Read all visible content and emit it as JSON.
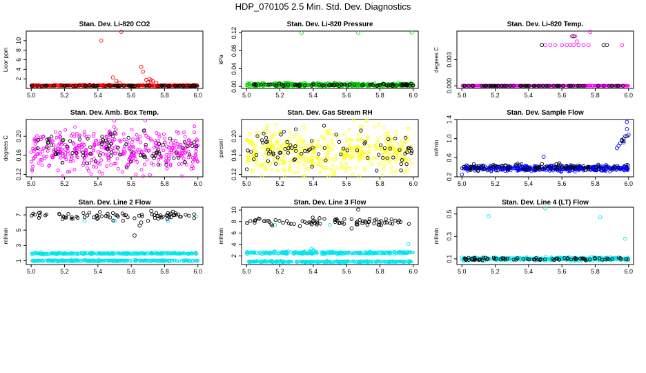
{
  "figure_title": "HDP_070105  2.5 Min. Std. Dev. Diagnostics",
  "x_axis": {
    "range": [
      4.97,
      6.03
    ],
    "ticks": [
      "5.0",
      "5.2",
      "5.4",
      "5.6",
      "5.8",
      "6.0"
    ]
  },
  "chart_data": [
    {
      "id": "co2",
      "type": "scatter",
      "title": "Stan. Dev. Li-820 CO2",
      "ylabel": "Licor ppm",
      "ylim": [
        0,
        12
      ],
      "yticks": [
        "2",
        "4",
        "6",
        "8",
        "10"
      ],
      "series": [
        {
          "name": "points",
          "color": "#ff0000",
          "base": {
            "mean": 0.6,
            "sd": 0.08,
            "n": 420
          },
          "x": [
            5.42,
            5.54,
            5.49,
            5.51,
            5.53,
            5.66,
            5.67,
            5.69,
            5.71,
            5.73,
            5.75,
            5.7,
            5.72
          ],
          "y": [
            10.0,
            12.0,
            2.3,
            1.6,
            1.2,
            4.5,
            3.5,
            1.8,
            2.0,
            1.5,
            1.2,
            1.3,
            1.7
          ]
        },
        {
          "name": "black",
          "color": "#000000",
          "base": {
            "mean": 0.55,
            "sd": 0.05,
            "n": 80
          }
        }
      ]
    },
    {
      "id": "pressure",
      "type": "scatter",
      "title": "Stan. Dev. Li-820 Pressure",
      "ylabel": "kPa",
      "ylim": [
        -0.004,
        0.124
      ],
      "yticks": [
        "0.00",
        "0.04",
        "0.08",
        "0.12"
      ],
      "series": [
        {
          "name": "points",
          "color": "#00cc00",
          "base": {
            "mean": 0.004,
            "sd": 0.002,
            "n": 420
          },
          "x": [
            5.33,
            5.67,
            5.99
          ],
          "y": [
            0.12,
            0.12,
            0.121
          ]
        },
        {
          "name": "black",
          "color": "#000000",
          "base": {
            "mean": 0.004,
            "sd": 0.0015,
            "n": 80
          }
        }
      ]
    },
    {
      "id": "temp",
      "type": "scatter",
      "title": "Stan. Dev. Li-820 Temp.",
      "ylabel": "degrees C",
      "ylim": [
        -0.0003,
        0.0063
      ],
      "yticks": [
        "0.000",
        "0.003"
      ],
      "series": [
        {
          "name": "points",
          "color": "#ff00ff",
          "base": {
            "mean": 0.0,
            "sd": 0.0,
            "n": 420
          },
          "x": [
            5.48,
            5.5,
            5.53,
            5.56,
            5.6,
            5.63,
            5.65,
            5.67,
            5.7,
            5.73,
            5.76,
            5.66,
            5.68,
            5.77,
            5.96,
            5.69
          ],
          "y": [
            0.0047,
            0.0047,
            0.0047,
            0.0047,
            0.0047,
            0.0047,
            0.0047,
            0.0047,
            0.0047,
            0.0047,
            0.0047,
            0.0057,
            0.0057,
            0.0062,
            0.0047,
            0.0051
          ]
        },
        {
          "name": "black",
          "color": "#000000",
          "base": {
            "mean": 0.0,
            "sd": 0.0,
            "n": 80
          },
          "x": [
            5.48,
            5.67,
            5.85,
            5.87
          ],
          "y": [
            0.0047,
            0.0057,
            0.0047,
            0.0047
          ]
        }
      ]
    },
    {
      "id": "ambbox",
      "type": "scatter",
      "title": "Stan. Dev. Amb. Box Temp.",
      "ylabel": "degrees C",
      "ylim": [
        0.115,
        0.235
      ],
      "yticks": [
        "0.12",
        "0.16",
        "0.20"
      ],
      "series": [
        {
          "name": "points",
          "color": "#ff00ff",
          "base": {
            "mean": 0.17,
            "sd": 0.022,
            "n": 420
          }
        },
        {
          "name": "black",
          "color": "#000000",
          "base": {
            "mean": 0.175,
            "sd": 0.018,
            "n": 80
          }
        }
      ]
    },
    {
      "id": "rh",
      "type": "scatter",
      "title": "Stan. Dev. Gas Stream RH",
      "ylabel": "percent",
      "ylim": [
        0.115,
        0.235
      ],
      "yticks": [
        "0.12",
        "0.16",
        "0.20"
      ],
      "series": [
        {
          "name": "points",
          "color": "#ffff00",
          "base": {
            "mean": 0.168,
            "sd": 0.025,
            "n": 420
          }
        },
        {
          "name": "black",
          "color": "#000000",
          "base": {
            "mean": 0.172,
            "sd": 0.02,
            "n": 80
          }
        }
      ]
    },
    {
      "id": "sampleflow",
      "type": "scatter",
      "title": "Stan. Dev. Sample Flow",
      "ylabel": "ml/min",
      "ylim": [
        0.2,
        1.4
      ],
      "yticks": [
        "0.2",
        "0.6",
        "1.0",
        "1.4"
      ],
      "series": [
        {
          "name": "points",
          "color": "#0000ff",
          "base": {
            "mean": 0.38,
            "sd": 0.03,
            "n": 420
          },
          "x": [
            5.49,
            5.95,
            5.96,
            5.97,
            5.98,
            5.99,
            5.99,
            5.94,
            5.93,
            5.97,
            6.0,
            5.0
          ],
          "y": [
            0.62,
            0.9,
            0.95,
            1.0,
            1.05,
            1.2,
            1.35,
            0.85,
            0.8,
            0.92,
            1.08,
            0.25
          ]
        },
        {
          "name": "black",
          "color": "#000000",
          "base": {
            "mean": 0.4,
            "sd": 0.04,
            "n": 80
          },
          "x": [
            5.96,
            5.99,
            5.97
          ],
          "y": [
            0.97,
            1.05,
            0.95
          ]
        }
      ]
    },
    {
      "id": "line2",
      "type": "scatter",
      "title": "Stan. Dev. Line 2 Flow",
      "ylabel": "ml/min",
      "ylim": [
        0.5,
        8
      ],
      "yticks": [
        "1",
        "3",
        "5",
        "7"
      ],
      "series": [
        {
          "name": "points",
          "color": "#00e5ee",
          "bands": [
            {
              "mean": 1.0,
              "sd": 0.05,
              "n": 300
            },
            {
              "mean": 1.95,
              "sd": 0.06,
              "n": 300
            }
          ],
          "x": [
            5.32,
            5.5,
            5.82,
            5.99
          ],
          "y": [
            6.2,
            6.2,
            6.2,
            6.8
          ]
        },
        {
          "name": "black",
          "color": "#000000",
          "base": {
            "mean": 6.85,
            "sd": 0.25,
            "n": 80
          },
          "x": [
            5.62,
            5.66,
            5.65,
            5.72,
            5.85,
            5.7
          ],
          "y": [
            4.3,
            6.0,
            5.6,
            7.5,
            7.4,
            6.2
          ]
        }
      ]
    },
    {
      "id": "line3",
      "type": "scatter",
      "title": "Stan. Dev. Line 3 Flow",
      "ylabel": "ml/min",
      "ylim": [
        0.5,
        10.5
      ],
      "yticks": [
        "2",
        "4",
        "6",
        "8",
        "10"
      ],
      "series": [
        {
          "name": "points",
          "color": "#00e5ee",
          "bands": [
            {
              "mean": 1.0,
              "sd": 0.07,
              "n": 300
            },
            {
              "mean": 2.55,
              "sd": 0.12,
              "n": 300
            }
          ],
          "x": [
            5.39,
            5.4,
            5.97,
            5.17,
            5.5
          ],
          "y": [
            3.2,
            3.0,
            4.1,
            7.4,
            7.4
          ]
        },
        {
          "name": "black",
          "color": "#000000",
          "base": {
            "mean": 8.0,
            "sd": 0.35,
            "n": 80
          },
          "x": [
            5.67,
            5.63,
            5.32,
            5.66
          ],
          "y": [
            10.1,
            6.8,
            7.2,
            7.5
          ]
        }
      ]
    },
    {
      "id": "line4",
      "type": "scatter",
      "title": "Stan. Dev. Line 4 (LT) Flow",
      "ylabel": "ml/min",
      "ylim": [
        0.05,
        0.56
      ],
      "yticks": [
        "0.1",
        "0.3",
        "0.5"
      ],
      "series": [
        {
          "name": "points",
          "color": "#00e5ee",
          "base": {
            "mean": 0.1,
            "sd": 0.008,
            "n": 420
          },
          "x": [
            5.16,
            5.5,
            5.83,
            5.98
          ],
          "y": [
            0.48,
            0.55,
            0.47,
            0.28
          ]
        },
        {
          "name": "black",
          "color": "#000000",
          "base": {
            "mean": 0.1,
            "sd": 0.006,
            "n": 80
          }
        }
      ]
    }
  ]
}
